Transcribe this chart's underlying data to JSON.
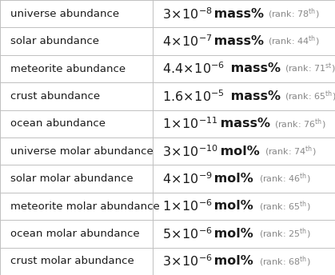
{
  "rows": [
    {
      "label": "universe abundance",
      "coeff": "3",
      "exp": "-8",
      "unit": "mass\\%",
      "rank": "78",
      "rank_suffix": "th"
    },
    {
      "label": "solar abundance",
      "coeff": "4",
      "exp": "-7",
      "unit": "mass\\%",
      "rank": "44",
      "rank_suffix": "th"
    },
    {
      "label": "meteorite abundance",
      "coeff": "4.4",
      "exp": "-6",
      "unit": "mass\\%",
      "rank": "71",
      "rank_suffix": "st"
    },
    {
      "label": "crust abundance",
      "coeff": "1.6",
      "exp": "-5",
      "unit": "mass\\%",
      "rank": "65",
      "rank_suffix": "th"
    },
    {
      "label": "ocean abundance",
      "coeff": "1",
      "exp": "-11",
      "unit": "mass\\%",
      "rank": "76",
      "rank_suffix": "th"
    },
    {
      "label": "universe molar abundance",
      "coeff": "3",
      "exp": "-10",
      "unit": "mol\\%",
      "rank": "74",
      "rank_suffix": "th"
    },
    {
      "label": "solar molar abundance",
      "coeff": "4",
      "exp": "-9",
      "unit": "mol\\%",
      "rank": "46",
      "rank_suffix": "th"
    },
    {
      "label": "meteorite molar abundance",
      "coeff": "1",
      "exp": "-6",
      "unit": "mol\\%",
      "rank": "65",
      "rank_suffix": "th"
    },
    {
      "label": "ocean molar abundance",
      "coeff": "5",
      "exp": "-6",
      "unit": "mol\\%",
      "rank": "25",
      "rank_suffix": "th"
    },
    {
      "label": "crust molar abundance",
      "coeff": "3",
      "exp": "-6",
      "unit": "mol\\%",
      "rank": "68",
      "rank_suffix": "th"
    }
  ],
  "col_split": 0.455,
  "bg_color": "#ffffff",
  "border_color": "#c0c0c0",
  "text_color": "#1a1a1a",
  "rank_color": "#888888",
  "label_fontsize": 9.5,
  "value_fontsize": 11.5,
  "rank_fontsize": 8.0,
  "unit_fontsize": 11.5
}
